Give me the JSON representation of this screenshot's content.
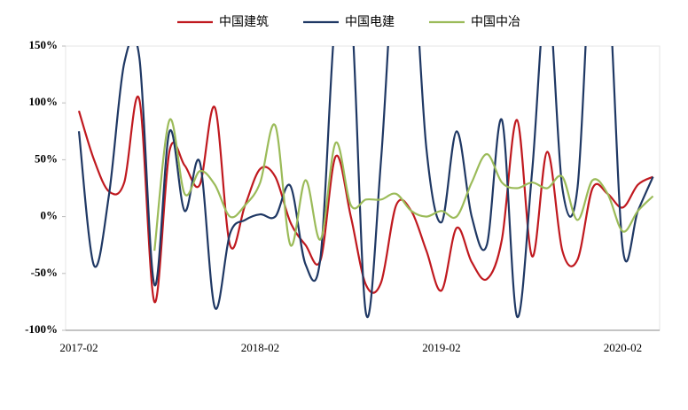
{
  "chart_data": {
    "type": "line",
    "categories": [
      "2017-02",
      null,
      null,
      null,
      null,
      null,
      null,
      null,
      null,
      null,
      null,
      null,
      "2018-02",
      null,
      null,
      null,
      null,
      null,
      null,
      null,
      null,
      null,
      null,
      null,
      "2019-02",
      null,
      null,
      null,
      null,
      null,
      null,
      null,
      null,
      null,
      null,
      null,
      "2020-02",
      null,
      null
    ],
    "series": [
      {
        "name": "中国建筑",
        "color": "#c0191f",
        "values": [
          93,
          50,
          22,
          30,
          103,
          -75,
          58,
          45,
          28,
          96,
          -25,
          10,
          42,
          35,
          -5,
          -25,
          -38,
          53,
          0,
          -60,
          -58,
          10,
          5,
          -30,
          -65,
          -10,
          -40,
          -55,
          -20,
          85,
          -35,
          57,
          -30,
          -38,
          25,
          20,
          8,
          28,
          35
        ]
      },
      {
        "name": "中国电建",
        "color": "#1f3864",
        "values": [
          75,
          -43,
          20,
          135,
          140,
          -60,
          75,
          5,
          48,
          -80,
          -15,
          -3,
          2,
          0,
          27,
          -42,
          -35,
          180,
          190,
          -85,
          50,
          250,
          250,
          60,
          -5,
          75,
          0,
          -25,
          85,
          -88,
          40,
          200,
          25,
          25,
          250,
          220,
          -28,
          5,
          35
        ]
      },
      {
        "name": "中国中冶",
        "color": "#9bbb59",
        "values": [
          null,
          null,
          null,
          null,
          null,
          -30,
          85,
          20,
          40,
          28,
          0,
          10,
          30,
          80,
          -25,
          32,
          -20,
          65,
          10,
          15,
          15,
          20,
          5,
          0,
          5,
          0,
          30,
          55,
          30,
          25,
          30,
          25,
          35,
          -3,
          32,
          20,
          -13,
          5,
          18
        ]
      }
    ],
    "ylim": [
      -100,
      150
    ],
    "yticks": [
      {
        "value": -100,
        "label": "-100%"
      },
      {
        "value": -50,
        "label": "-50%"
      },
      {
        "value": 0,
        "label": "0%"
      },
      {
        "value": 50,
        "label": "50%"
      },
      {
        "value": 100,
        "label": "100%"
      },
      {
        "value": 150,
        "label": "150%"
      }
    ],
    "legend": "top"
  }
}
